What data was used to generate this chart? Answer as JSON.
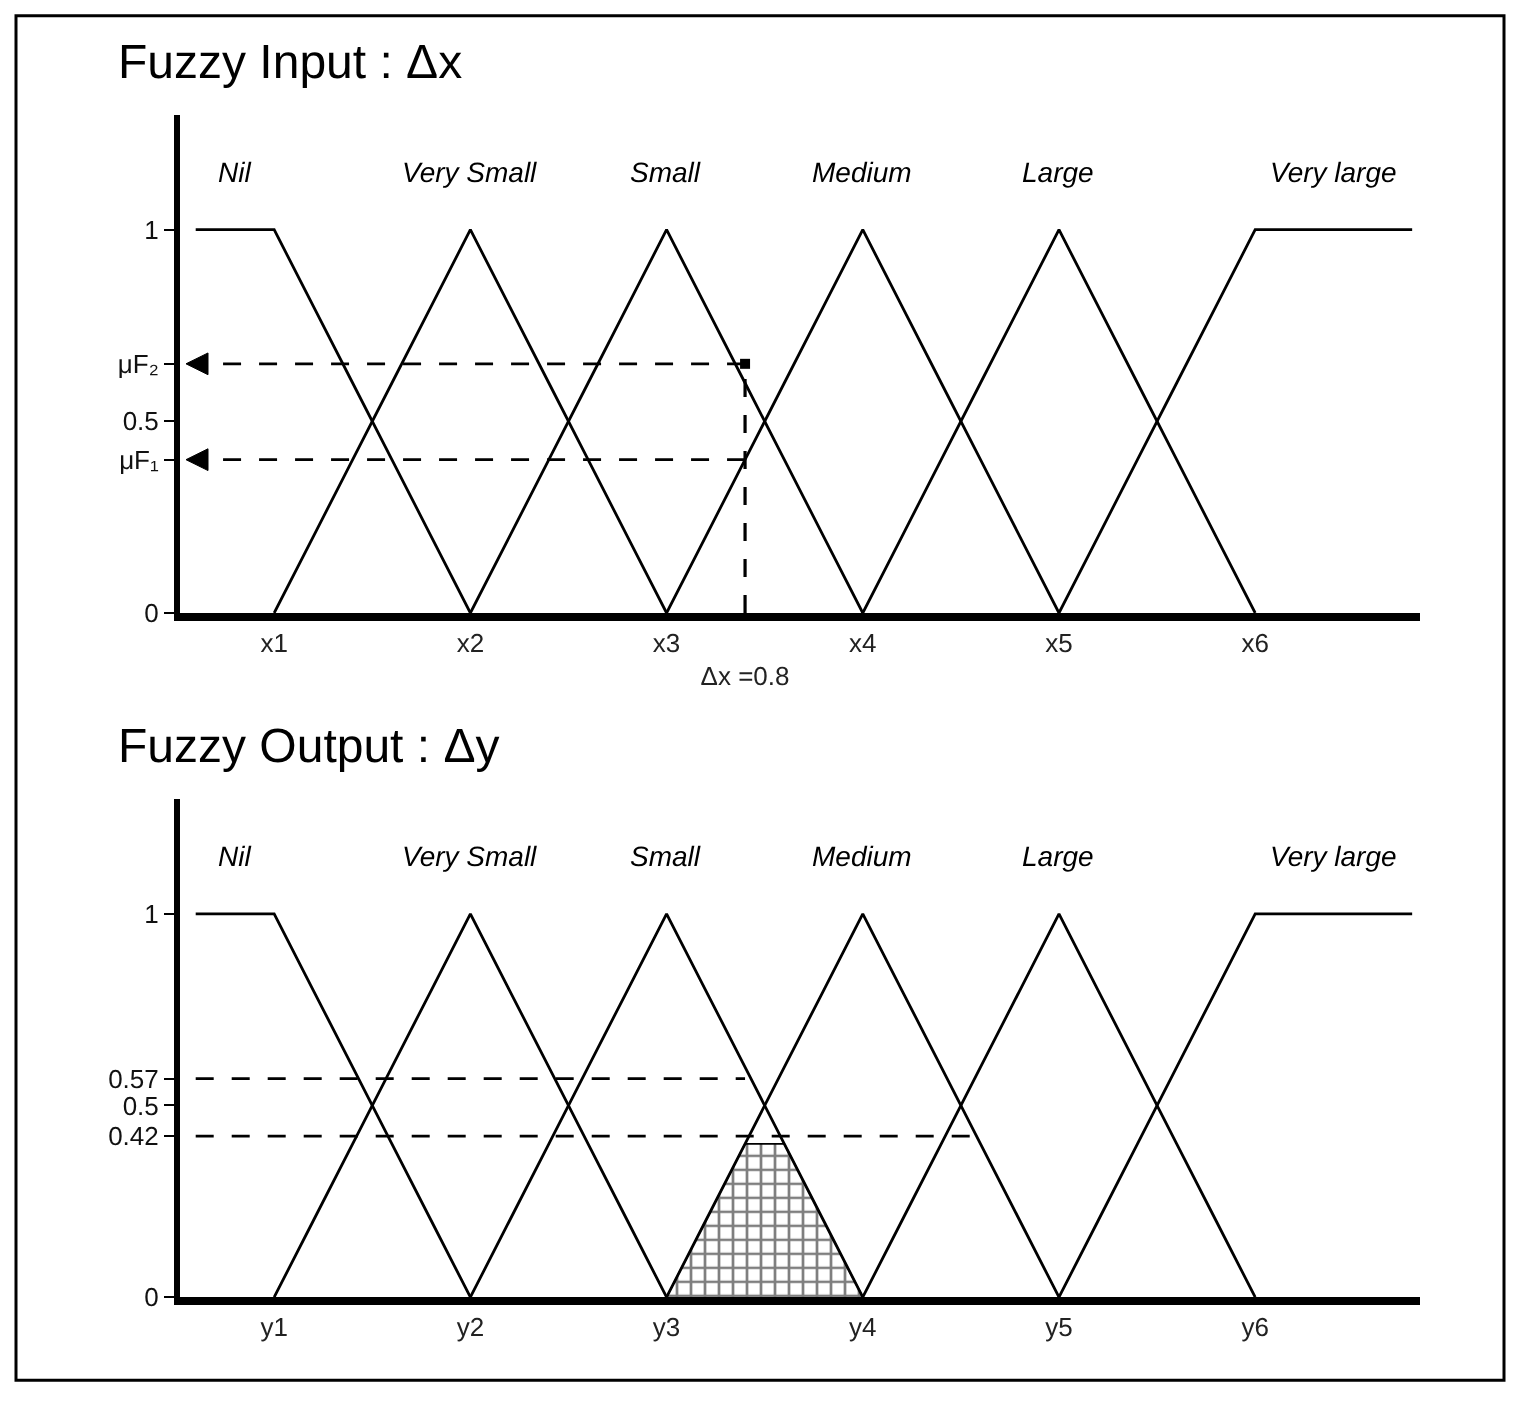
{
  "chart_data": [
    {
      "type": "line",
      "title": "Fuzzy Input : Δx",
      "categories": [
        null,
        null,
        "x1",
        null,
        null,
        null,
        null,
        "x2",
        null,
        null,
        null,
        null,
        "x3",
        null,
        "Δx =0.8",
        null,
        null,
        "x4",
        null,
        null,
        null,
        null,
        "x5",
        null,
        null,
        null,
        null,
        "x6",
        null,
        null,
        null,
        null
      ],
      "ylim": [
        0,
        1.3
      ],
      "yticks": [
        0,
        {
          "value": 0.4,
          "label": "μF₁"
        },
        0.5,
        {
          "value": 0.65,
          "label": "μF₂"
        },
        1
      ],
      "series": [
        {
          "name": "Nil",
          "color": "#000000",
          "values": [
            1,
            1,
            1,
            0.8,
            0.6,
            0.4,
            0.2,
            0,
            null,
            null,
            null,
            null,
            null,
            null,
            null,
            null,
            null,
            null,
            null,
            null,
            null,
            null,
            null,
            null,
            null,
            null,
            null,
            null,
            null,
            null,
            null,
            null
          ]
        },
        {
          "name": "Very Small",
          "color": "#000000",
          "values": [
            null,
            null,
            0,
            0.2,
            0.4,
            0.6,
            0.8,
            1,
            0.8,
            0.6,
            0.4,
            0.2,
            0,
            null,
            null,
            null,
            null,
            null,
            null,
            null,
            null,
            null,
            null,
            null,
            null,
            null,
            null,
            null,
            null,
            null,
            null,
            null
          ]
        },
        {
          "name": "Small",
          "color": "#000000",
          "values": [
            null,
            null,
            null,
            null,
            null,
            null,
            null,
            0,
            0.2,
            0.4,
            0.6,
            0.8,
            1,
            0.8,
            0.6,
            0.4,
            0.2,
            0,
            null,
            null,
            null,
            null,
            null,
            null,
            null,
            null,
            null,
            null,
            null,
            null,
            null,
            null
          ]
        },
        {
          "name": "Medium",
          "color": "#000000",
          "values": [
            null,
            null,
            null,
            null,
            null,
            null,
            null,
            null,
            null,
            null,
            null,
            null,
            0,
            0.2,
            0.4,
            0.6,
            0.8,
            1,
            0.8,
            0.6,
            0.4,
            0.2,
            0,
            null,
            null,
            null,
            null,
            null,
            null,
            null,
            null,
            null
          ]
        },
        {
          "name": "Large",
          "color": "#000000",
          "values": [
            null,
            null,
            null,
            null,
            null,
            null,
            null,
            null,
            null,
            null,
            null,
            null,
            null,
            null,
            null,
            null,
            null,
            0,
            0.2,
            0.4,
            0.6,
            0.8,
            1,
            0.8,
            0.6,
            0.4,
            0.2,
            0,
            null,
            null,
            null,
            null
          ]
        },
        {
          "name": "Very large",
          "color": "#000000",
          "values": [
            null,
            null,
            null,
            null,
            null,
            null,
            null,
            null,
            null,
            null,
            null,
            null,
            null,
            null,
            null,
            null,
            null,
            null,
            null,
            null,
            null,
            null,
            0,
            0.2,
            0.4,
            0.6,
            0.8,
            1,
            1,
            1,
            1,
            1
          ]
        },
        {
          "type": "lollipop",
          "color": "#000000",
          "line_style": "dashed",
          "marker": "square",
          "values": [
            null,
            null,
            null,
            null,
            null,
            null,
            null,
            null,
            null,
            null,
            null,
            null,
            null,
            null,
            0.65,
            null,
            null,
            null,
            null,
            null,
            null,
            null,
            null,
            null,
            null,
            null,
            null,
            null,
            null,
            null,
            null,
            null
          ]
        }
      ]
    },
    {
      "type": "line",
      "title": "Fuzzy Output : Δy",
      "categories": [
        null,
        null,
        "y1",
        null,
        null,
        null,
        null,
        "y2",
        null,
        null,
        null,
        null,
        "y3",
        null,
        null,
        null,
        null,
        "y4",
        null,
        null,
        null,
        null,
        "y5",
        null,
        null,
        null,
        null,
        "y6",
        null,
        null,
        null,
        null
      ],
      "ylim": [
        0,
        1.3
      ],
      "yticks": [
        0,
        0.42,
        0.5,
        0.57,
        1
      ],
      "series": [
        {
          "type": "area",
          "color": "#000000",
          "values": [
            null,
            null,
            null,
            null,
            null,
            null,
            null,
            null,
            null,
            null,
            null,
            null,
            0,
            0.2,
            0.4,
            0.4,
            0.2,
            0,
            null,
            null,
            null,
            null,
            null,
            null,
            null,
            null,
            null,
            null,
            null,
            null,
            null,
            null
          ]
        },
        {
          "name": "Nil",
          "color": "#000000",
          "values": [
            1,
            1,
            1,
            0.8,
            0.6,
            0.4,
            0.2,
            0,
            null,
            null,
            null,
            null,
            null,
            null,
            null,
            null,
            null,
            null,
            null,
            null,
            null,
            null,
            null,
            null,
            null,
            null,
            null,
            null,
            null,
            null,
            null,
            null
          ]
        },
        {
          "name": "Very Small",
          "color": "#000000",
          "values": [
            null,
            null,
            0,
            0.2,
            0.4,
            0.6,
            0.8,
            1,
            0.8,
            0.6,
            0.4,
            0.2,
            0,
            null,
            null,
            null,
            null,
            null,
            null,
            null,
            null,
            null,
            null,
            null,
            null,
            null,
            null,
            null,
            null,
            null,
            null,
            null
          ]
        },
        {
          "name": "Small",
          "color": "#000000",
          "values": [
            null,
            null,
            null,
            null,
            null,
            null,
            null,
            0,
            0.2,
            0.4,
            0.6,
            0.8,
            1,
            0.8,
            0.6,
            0.4,
            0.2,
            0,
            null,
            null,
            null,
            null,
            null,
            null,
            null,
            null,
            null,
            null,
            null,
            null,
            null,
            null
          ]
        },
        {
          "name": "Medium",
          "color": "#000000",
          "values": [
            null,
            null,
            null,
            null,
            null,
            null,
            null,
            null,
            null,
            null,
            null,
            null,
            0,
            0.2,
            0.4,
            0.6,
            0.8,
            1,
            0.8,
            0.6,
            0.4,
            0.2,
            0,
            null,
            null,
            null,
            null,
            null,
            null,
            null,
            null,
            null
          ]
        },
        {
          "name": "Large",
          "color": "#000000",
          "values": [
            null,
            null,
            null,
            null,
            null,
            null,
            null,
            null,
            null,
            null,
            null,
            null,
            null,
            null,
            null,
            null,
            null,
            0,
            0.2,
            0.4,
            0.6,
            0.8,
            1,
            0.8,
            0.6,
            0.4,
            0.2,
            0,
            null,
            null,
            null,
            null
          ]
        },
        {
          "name": "Very large",
          "color": "#000000",
          "values": [
            null,
            null,
            null,
            null,
            null,
            null,
            null,
            null,
            null,
            null,
            null,
            null,
            null,
            null,
            null,
            null,
            null,
            null,
            null,
            null,
            null,
            null,
            0,
            0.2,
            0.4,
            0.6,
            0.8,
            1,
            1,
            1,
            1,
            1
          ]
        },
        {
          "color": "#000000",
          "line_style": "dashed",
          "values": [
            0.57,
            0.57,
            0.57,
            0.57,
            0.57,
            0.57,
            0.57,
            0.57,
            0.57,
            0.57,
            0.57,
            0.57,
            0.57,
            0.57,
            0.57,
            null,
            null,
            null,
            null,
            null,
            null,
            null,
            null,
            null,
            null,
            null,
            null,
            null,
            null,
            null,
            null,
            null
          ]
        },
        {
          "color": "#000000",
          "line_style": "dashed",
          "values": [
            0.42,
            0.42,
            0.42,
            0.42,
            0.42,
            0.42,
            0.42,
            0.42,
            0.42,
            0.42,
            0.42,
            0.42,
            0.42,
            0.42,
            0.42,
            0.42,
            0.42,
            0.42,
            0.42,
            0.42,
            0.42,
            null,
            null,
            null,
            null,
            null,
            null,
            null,
            null,
            null,
            null,
            null
          ]
        }
      ]
    }
  ]
}
